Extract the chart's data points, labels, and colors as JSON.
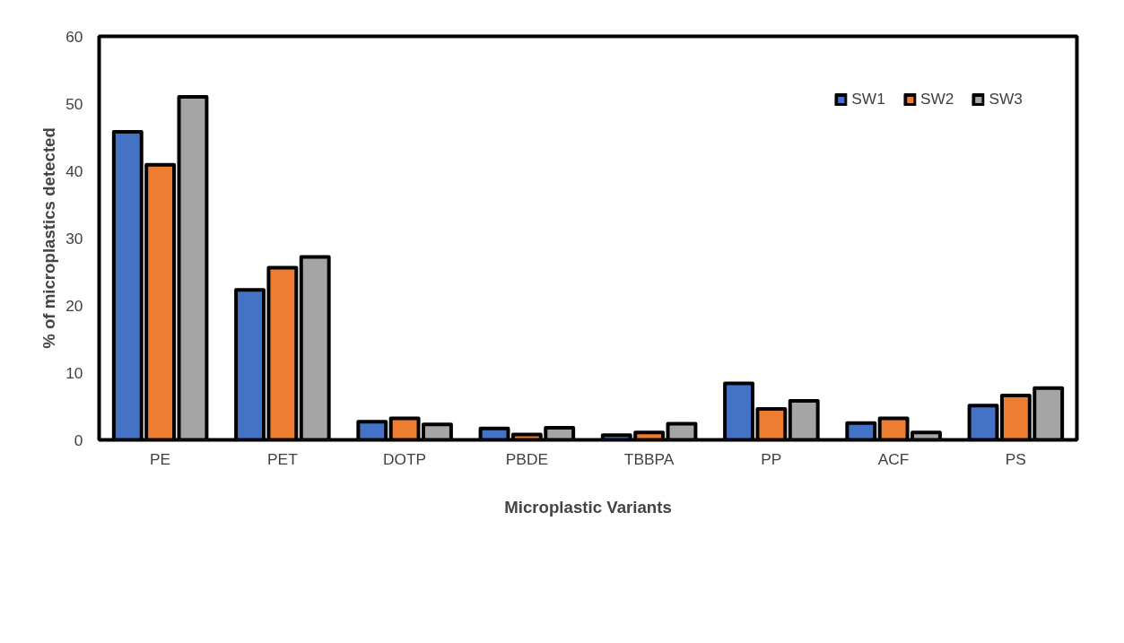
{
  "chart_data": {
    "type": "bar",
    "xlabel": "Microplastic Variants",
    "ylabel": "% of microplastics detected",
    "categories": [
      "PE",
      "PET",
      "DOTP",
      "PBDE",
      "TBBPA",
      "PP",
      "ACF",
      "PS"
    ],
    "series": [
      {
        "name": "SW1",
        "color": "#4472c4",
        "values": [
          45.8,
          22.3,
          2.7,
          1.7,
          0.7,
          8.4,
          2.5,
          5.1
        ]
      },
      {
        "name": "SW2",
        "color": "#ed7d31",
        "values": [
          40.9,
          25.6,
          3.2,
          0.8,
          1.1,
          4.6,
          3.2,
          6.6
        ]
      },
      {
        "name": "SW3",
        "color": "#a5a5a5",
        "values": [
          51,
          27.2,
          2.3,
          1.8,
          2.4,
          5.8,
          1.1,
          7.7
        ]
      }
    ],
    "ylim": [
      0,
      60
    ],
    "yticks": [
      0,
      10,
      20,
      30,
      40,
      50,
      60
    ],
    "grid": false,
    "legend": "top right"
  }
}
